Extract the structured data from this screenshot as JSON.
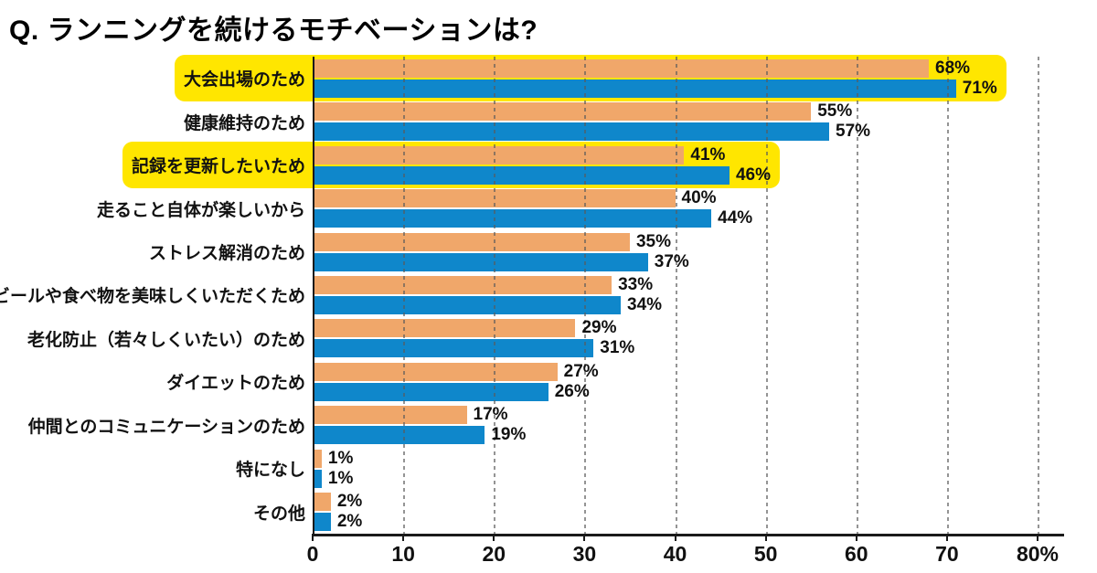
{
  "title": "Q. ランニングを続けるモチベーションは?",
  "colors": {
    "orange": "#F0A76A",
    "blue": "#0F87CB",
    "highlight_yellow": "#FFE600",
    "grid": "#5A5A5A",
    "axis": "#1A1A1A",
    "text": "#111111"
  },
  "chart_data": {
    "type": "bar",
    "orientation": "horizontal",
    "title": "Q. ランニングを続けるモチベーションは?",
    "categories": [
      "大会出場のため",
      "健康維持のため",
      "記録を更新したいため",
      "走ること自体が楽しいから",
      "ストレス解消のため",
      "ビールや食べ物を美味しくいただくため",
      "老化防止（若々しくいたい）のため",
      "ダイエットのため",
      "仲間とのコミュニケーションのため",
      "特になし",
      "その他"
    ],
    "series": [
      {
        "name": "orange-series",
        "color_key": "orange",
        "values": [
          68,
          55,
          41,
          40,
          35,
          33,
          29,
          27,
          17,
          1,
          2
        ]
      },
      {
        "name": "blue-series",
        "color_key": "blue",
        "values": [
          71,
          57,
          46,
          44,
          37,
          34,
          31,
          26,
          19,
          1,
          2
        ]
      }
    ],
    "value_suffix": "%",
    "highlighted_rows": [
      0,
      2
    ],
    "xlim": [
      0,
      80
    ],
    "x_ticks": [
      "0",
      "10",
      "20",
      "30",
      "40",
      "50",
      "60",
      "70",
      "80%"
    ],
    "grid": "dashed-vertical",
    "legend": "none"
  }
}
